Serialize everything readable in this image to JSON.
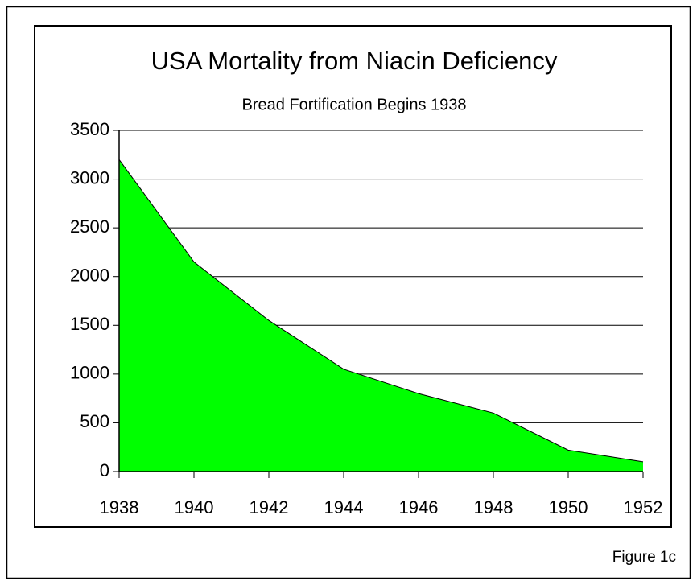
{
  "chart_data": {
    "type": "area",
    "title": "USA Mortality from Niacin Deficiency",
    "subtitle": "Bread Fortification Begins 1938",
    "annotation": "Figure 1c",
    "x": [
      1938,
      1940,
      1942,
      1944,
      1946,
      1948,
      1950,
      1952
    ],
    "values": [
      3200,
      2150,
      1550,
      1050,
      800,
      600,
      220,
      100
    ],
    "color": "#00ff00",
    "xlim": [
      1938,
      1952
    ],
    "xticks": [
      1938,
      1940,
      1942,
      1944,
      1946,
      1948,
      1950,
      1952
    ],
    "ylim": [
      0,
      3500
    ],
    "yticks": [
      0,
      500,
      1000,
      1500,
      2000,
      2500,
      3000,
      3500
    ],
    "grid": true
  }
}
